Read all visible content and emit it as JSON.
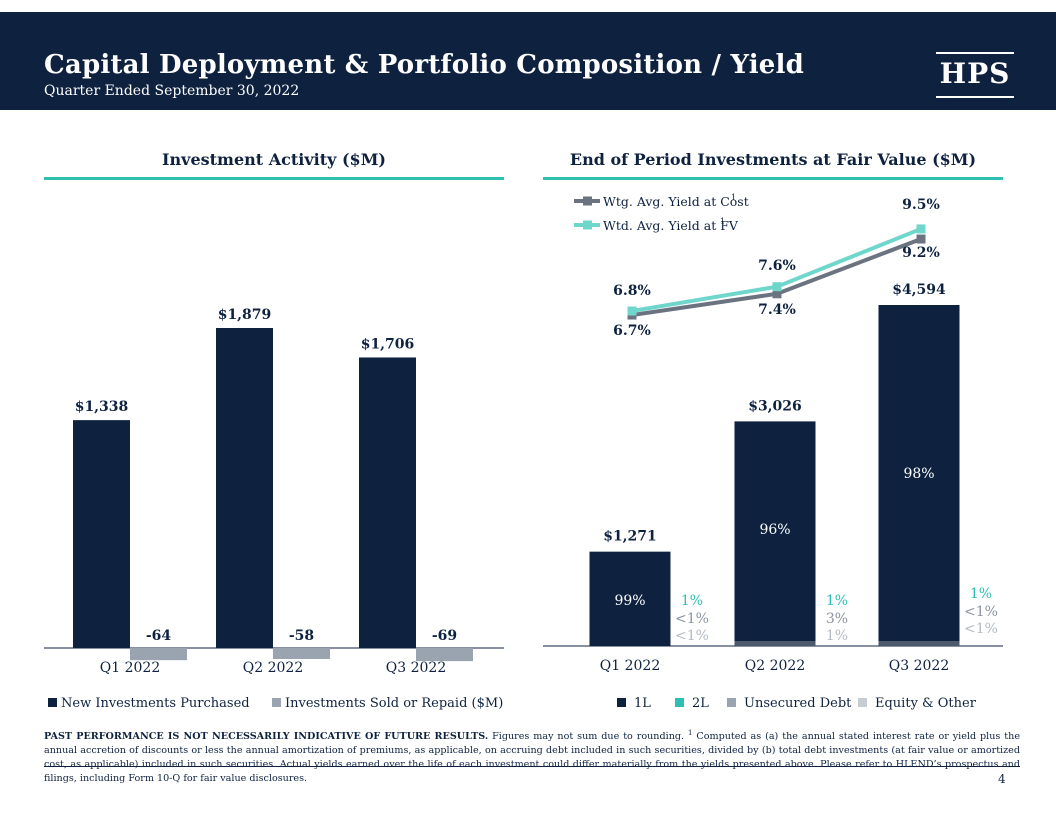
{
  "header": {
    "title": "Capital Deployment & Portfolio Composition / Yield",
    "subtitle": "Quarter Ended September 30, 2022",
    "logo": "HPS"
  },
  "colors": {
    "navy": "#0e2240",
    "teal": "#2ebfb3",
    "gray": "#9aa4b1",
    "light_gray": "#c8cdd4",
    "yield_cost": "#6b7280",
    "yield_fv": "#6fd6cc"
  },
  "chart_data": [
    {
      "type": "bar",
      "title": "Investment Activity ($M)",
      "categories": [
        "Q1 2022",
        "Q2 2022",
        "Q3 2022"
      ],
      "series": [
        {
          "name": "New Investments Purchased",
          "values": [
            1338,
            1879,
            1706
          ],
          "labels": [
            "$1,338",
            "$1,879",
            "$1,706"
          ],
          "color": "#0e2240"
        },
        {
          "name": "Investments Sold or Repaid ($M)",
          "values": [
            -64,
            -58,
            -69
          ],
          "labels": [
            "-64",
            "-58",
            "-69"
          ],
          "color": "#9aa4b1"
        }
      ]
    },
    {
      "type": "bar",
      "stacked": true,
      "title": "End of Period Investments at Fair Value ($M)",
      "categories": [
        "Q1 2022",
        "Q2 2022",
        "Q3 2022"
      ],
      "totals": [
        1271,
        3026,
        4594
      ],
      "total_labels": [
        "$1,271",
        "$3,026",
        "$4,594"
      ],
      "series": [
        {
          "name": "1L",
          "shares": [
            "99%",
            "96%",
            "98%"
          ],
          "color": "#0e2240"
        },
        {
          "name": "2L",
          "shares": [
            "1%",
            "1%",
            "1%"
          ],
          "color": "#2ebfb3"
        },
        {
          "name": "Unsecured Debt",
          "shares": [
            "<1%",
            "3%",
            "<1%"
          ],
          "color": "#9aa4b1"
        },
        {
          "name": "Equity & Other",
          "shares": [
            "<1%",
            "1%",
            "<1%"
          ],
          "color": "#c8cdd4"
        }
      ],
      "yield_series": [
        {
          "name": "Wtg. Avg. Yield at Cost",
          "sup": "1",
          "values": [
            6.7,
            7.4,
            9.2
          ],
          "labels": [
            "6.7%",
            "7.4%",
            "9.2%"
          ],
          "color": "#6b7280"
        },
        {
          "name": "Wtd. Avg. Yield at FV",
          "sup": "1",
          "values": [
            6.8,
            7.6,
            9.5
          ],
          "labels": [
            "6.8%",
            "7.6%",
            "9.5%"
          ],
          "color": "#6fd6cc"
        }
      ]
    }
  ],
  "footnote": {
    "bold": "PAST PERFORMANCE IS NOT NECESSARILY INDICATIVE OF FUTURE RESULTS.",
    "text_a": " Figures may not sum due to rounding. ",
    "sup": "1",
    "text_b": " Computed as (a) the annual stated interest rate or yield plus the annual accretion of discounts or less the annual amortization of premiums, as applicable, on accruing debt included in such securities, divided by (b) total debt investments (at fair value or amortized cost, as applicable) included in such securities. Actual yields earned over the life of each investment could differ materially from the yields presented above. Please refer to HLEND’s prospectus and filings, including Form 10-Q for fair value disclosures."
  },
  "page_number": "4"
}
